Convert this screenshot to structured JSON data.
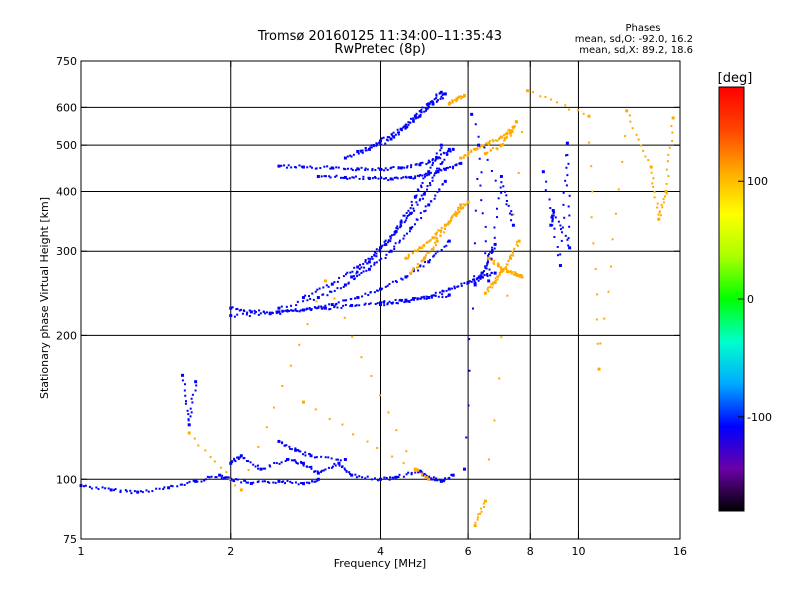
{
  "chart_data": {
    "type": "scatter",
    "title": "Tromsø 20160125 11:34:00–11:35:43",
    "subtitle": "RwPretec (8p)",
    "xlabel": "Frequency [MHz]",
    "ylabel": "Stationary phase Virtual Height [km]",
    "x_scale": "log",
    "y_scale": "log",
    "xlim": [
      1,
      16
    ],
    "ylim": [
      75,
      750
    ],
    "x_ticks": [
      {
        "value": 1,
        "label": "1"
      },
      {
        "value": 2,
        "label": "2"
      },
      {
        "value": 4,
        "label": "4"
      },
      {
        "value": 6,
        "label": "6"
      },
      {
        "value": 8,
        "label": "8"
      },
      {
        "value": 10,
        "label": "10"
      },
      {
        "value": 16,
        "label": "16"
      }
    ],
    "y_ticks": [
      {
        "value": 75,
        "label": "75"
      },
      {
        "value": 100,
        "label": "100"
      },
      {
        "value": 200,
        "label": "200"
      },
      {
        "value": 300,
        "label": "300"
      },
      {
        "value": 400,
        "label": "400"
      },
      {
        "value": 500,
        "label": "500"
      },
      {
        "value": 600,
        "label": "600"
      },
      {
        "value": 750,
        "label": "750"
      }
    ],
    "grid_x": [
      2,
      4,
      6,
      8,
      10
    ],
    "grid_y": [
      100,
      200,
      300,
      400,
      500,
      600
    ],
    "grid": true,
    "stats": {
      "heading": "Phases",
      "line1": "mean, sd,O: -92.0, 16.2",
      "line2": "mean, sd,X:  89.2, 18.6"
    },
    "colorbar": {
      "label": "[deg]",
      "range": [
        -180,
        180
      ],
      "ticks": [
        {
          "value": 100,
          "label": "100"
        },
        {
          "value": 0,
          "label": "0"
        },
        {
          "value": -100,
          "label": "-100"
        }
      ],
      "colors": [
        "#000000",
        "#6a00a8",
        "#0000ff",
        "#00aaff",
        "#00ffcc",
        "#00ff00",
        "#aaff00",
        "#ffff00",
        "#ffaa00",
        "#ff4400",
        "#ff0000"
      ]
    },
    "series": [
      {
        "x": [
          1.0,
          1.15,
          1.3,
          1.5,
          1.7,
          1.9,
          2.0,
          2.2,
          2.5,
          2.8,
          3.0
        ],
        "y": [
          97,
          95,
          94,
          96,
          99,
          102,
          100,
          98,
          99,
          98,
          100
        ],
        "phase": -100
      },
      {
        "x": [
          2.0,
          2.2,
          2.5,
          2.8,
          3.1,
          3.5,
          4.0,
          4.5,
          5.0,
          5.5
        ],
        "y": [
          228,
          224,
          224,
          226,
          228,
          231,
          234,
          237,
          240,
          243
        ],
        "phase": -95
      },
      {
        "x": [
          2.0,
          2.4,
          2.8,
          3.2,
          3.6,
          4.0,
          4.5,
          5.0,
          5.5
        ],
        "y": [
          220,
          222,
          226,
          232,
          240,
          250,
          265,
          285,
          315
        ],
        "phase": -100
      },
      {
        "x": [
          2.5,
          3.0,
          3.4,
          3.8,
          4.2,
          4.6,
          5.0,
          5.4
        ],
        "y": [
          228,
          240,
          255,
          275,
          300,
          335,
          375,
          420
        ],
        "phase": -105
      },
      {
        "x": [
          2.8,
          3.2,
          3.6,
          4.0,
          4.3,
          4.6,
          4.9,
          5.2,
          5.5
        ],
        "y": [
          240,
          256,
          278,
          305,
          330,
          360,
          395,
          440,
          490
        ],
        "phase": -100
      },
      {
        "x": [
          3.5,
          3.8,
          4.1,
          4.4,
          4.7,
          5.0,
          5.3
        ],
        "y": [
          265,
          285,
          310,
          345,
          390,
          440,
          500
        ],
        "phase": -110
      },
      {
        "x": [
          4.0,
          4.5,
          5.0,
          5.5,
          6.0,
          6.4,
          6.8
        ],
        "y": [
          232,
          236,
          240,
          250,
          258,
          265,
          270
        ],
        "phase": -95
      },
      {
        "x": [
          6.2,
          6.4,
          6.6,
          6.8
        ],
        "y": [
          255,
          270,
          290,
          310
        ],
        "phase": -100
      },
      {
        "x": [
          2.5,
          2.8,
          3.2,
          3.6,
          4.0,
          4.4,
          4.8,
          5.2,
          5.6
        ],
        "y": [
          452,
          450,
          448,
          446,
          445,
          448,
          455,
          470,
          490
        ],
        "phase": -100
      },
      {
        "x": [
          3.0,
          3.4,
          3.8,
          4.2,
          4.6,
          5.0,
          5.4,
          5.8
        ],
        "y": [
          430,
          428,
          426,
          425,
          428,
          435,
          445,
          458
        ],
        "phase": -105
      },
      {
        "x": [
          3.4,
          3.8,
          4.2,
          4.5,
          4.8,
          5.1,
          5.4
        ],
        "y": [
          470,
          490,
          515,
          545,
          575,
          610,
          640
        ],
        "phase": -110
      },
      {
        "x": [
          3.6,
          4.0,
          4.4,
          4.7,
          5.0,
          5.3
        ],
        "y": [
          485,
          510,
          540,
          575,
          610,
          645
        ],
        "phase": -100
      },
      {
        "x": [
          4.5,
          4.8,
          5.1,
          5.4,
          5.7,
          6.0
        ],
        "y": [
          290,
          305,
          320,
          340,
          360,
          380
        ],
        "phase": 100
      },
      {
        "x": [
          4.6,
          4.9,
          5.2,
          5.5,
          5.8
        ],
        "y": [
          270,
          290,
          315,
          345,
          375
        ],
        "phase": 95
      },
      {
        "x": [
          6.5,
          6.8,
          7.0,
          7.3,
          7.6
        ],
        "y": [
          245,
          258,
          272,
          290,
          315
        ],
        "phase": 95
      },
      {
        "x": [
          6.6,
          6.9,
          7.2,
          7.5,
          7.7
        ],
        "y": [
          290,
          280,
          272,
          268,
          265
        ],
        "phase": 100
      },
      {
        "x": [
          5.8,
          6.2,
          6.6,
          7.0,
          7.4
        ],
        "y": [
          470,
          490,
          505,
          520,
          545
        ],
        "phase": 100
      },
      {
        "x": [
          6.5,
          7.0,
          7.3,
          7.5
        ],
        "y": [
          480,
          500,
          530,
          560
        ],
        "phase": 110
      },
      {
        "x": [
          5.5,
          5.7,
          5.9
        ],
        "y": [
          610,
          625,
          635
        ],
        "phase": 115
      },
      {
        "x": [
          2.0,
          2.1,
          2.3,
          2.6,
          2.8,
          3.0,
          3.3,
          3.5,
          4.0,
          4.3,
          4.8,
          5.0,
          5.3,
          5.6
        ],
        "y": [
          108,
          112,
          105,
          110,
          108,
          103,
          108,
          102,
          100,
          101,
          104,
          101,
          99,
          102
        ],
        "phase": -100
      },
      {
        "x": [
          2.5,
          2.7,
          2.9,
          3.4
        ],
        "y": [
          120,
          115,
          112,
          110
        ],
        "phase": -95
      },
      {
        "x": [
          1.6,
          1.65,
          1.7
        ],
        "y": [
          165,
          130,
          160
        ],
        "phase": -110
      },
      {
        "x": [
          1.65,
          2.1,
          3.1,
          4.7,
          5.0,
          2.8
        ],
        "y": [
          125,
          95,
          260,
          105,
          100,
          145
        ],
        "phase": 100
      },
      {
        "x": [
          6.2,
          6.5,
          7.9,
          10.5,
          11.0,
          12.5,
          14.0,
          14.5,
          15.0,
          15.5
        ],
        "y": [
          80,
          90,
          650,
          575,
          170,
          590,
          450,
          350,
          400,
          570
        ],
        "phase": 100
      },
      {
        "x": [
          8.5,
          9.2,
          9.5,
          9.6,
          8.9,
          8.8
        ],
        "y": [
          440,
          280,
          505,
          305,
          365,
          340
        ],
        "phase": -100
      },
      {
        "x": [
          5.9,
          6.3,
          6.6,
          7.0,
          7.4,
          6.1
        ],
        "y": [
          105,
          500,
          260,
          430,
          340,
          580
        ],
        "phase": -110
      }
    ]
  }
}
